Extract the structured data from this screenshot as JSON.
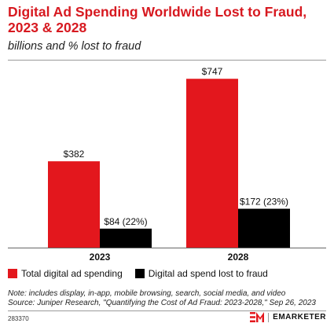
{
  "title": "Digital Ad Spending Worldwide Lost to Fraud, 2023 & 2028",
  "subtitle": "billions and % lost to fraud",
  "colors": {
    "total": "#e3171d",
    "lost": "#000000",
    "title": "#d71920"
  },
  "chart_data": {
    "type": "bar",
    "categories": [
      "2023",
      "2028"
    ],
    "series": [
      {
        "name": "Total digital ad spending",
        "values": [
          382,
          747
        ],
        "labels": [
          "$382",
          "$747"
        ]
      },
      {
        "name": "Digital ad spend lost to fraud",
        "values": [
          84,
          172
        ],
        "labels": [
          "$84 (22%)",
          "$172 (23%)"
        ]
      }
    ],
    "ylim": [
      0,
      800
    ],
    "grid": false,
    "legend_position": "bottom-left"
  },
  "note": "Note: includes display, in-app, mobile browsing, search, social media, and video",
  "source": "Source: Juniper Research, \"Quantifying the Cost of Ad Fraud: 2023-2028,\" Sep 26, 2023",
  "chart_id": "283370",
  "brand": "EMARKETER",
  "brand_icon": "emarketer-logo-icon"
}
